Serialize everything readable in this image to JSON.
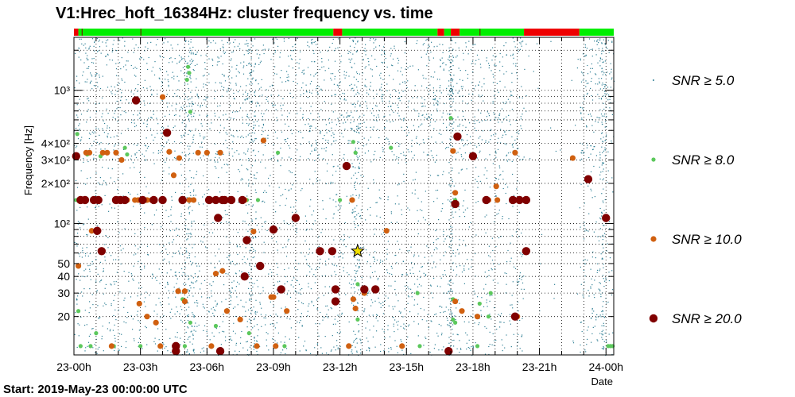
{
  "chart_data": {
    "type": "scatter",
    "title": "V1:Hrec_hoft_16384Hz: cluster frequency vs. time",
    "xlabel": "Date",
    "ylabel": "Frequency [Hz]",
    "xlim": [
      0,
      24.35
    ],
    "ylim": [
      10.3,
      2500
    ],
    "yscale": "log",
    "x_unit": "hours since start",
    "x_ticks": [
      {
        "value": 0,
        "label": "23-00h"
      },
      {
        "value": 3,
        "label": "23-03h"
      },
      {
        "value": 6,
        "label": "23-06h"
      },
      {
        "value": 9,
        "label": "23-09h"
      },
      {
        "value": 12,
        "label": "23-12h"
      },
      {
        "value": 15,
        "label": "23-15h"
      },
      {
        "value": 18,
        "label": "23-18h"
      },
      {
        "value": 21,
        "label": "23-21h"
      },
      {
        "value": 24,
        "label": "24-00h"
      }
    ],
    "y_ticks": [
      {
        "value": 20,
        "label": "20"
      },
      {
        "value": 30,
        "label": "30"
      },
      {
        "value": 40,
        "label": "40"
      },
      {
        "value": 50,
        "label": "50"
      },
      {
        "value": 100,
        "label": "10²"
      },
      {
        "value": 200,
        "label": "2×10²"
      },
      {
        "value": 300,
        "label": "3×10²"
      },
      {
        "value": 400,
        "label": "4×10²"
      },
      {
        "value": 1000,
        "label": "10³"
      }
    ],
    "grid": true,
    "legend_position": "right",
    "footer": "Start: 2019-May-23 00:00:00 UTC",
    "segment_bar": [
      {
        "start": 0.0,
        "end": 0.2,
        "state": "off"
      },
      {
        "start": 0.2,
        "end": 11.7,
        "state": "on"
      },
      {
        "start": 11.7,
        "end": 12.1,
        "state": "off"
      },
      {
        "start": 12.1,
        "end": 16.4,
        "state": "on"
      },
      {
        "start": 16.4,
        "end": 16.7,
        "state": "off"
      },
      {
        "start": 16.7,
        "end": 17.0,
        "state": "on"
      },
      {
        "start": 17.0,
        "end": 17.4,
        "state": "off"
      },
      {
        "start": 17.4,
        "end": 20.3,
        "state": "on"
      },
      {
        "start": 20.3,
        "end": 22.8,
        "state": "off"
      },
      {
        "start": 22.8,
        "end": 24.35,
        "state": "on"
      }
    ],
    "background_density": {
      "series": "SNR ≥ 5.0",
      "quiet_ranges": [
        [
          20.3,
          22.8
        ]
      ],
      "dense_ranges": [
        [
          5.0,
          5.4
        ],
        [
          7.8,
          8.2
        ],
        [
          12.5,
          12.9
        ],
        [
          16.9,
          17.1
        ],
        [
          23.7,
          24.0
        ]
      ]
    },
    "series": [
      {
        "name": "SNR ≥ 5.0",
        "threshold": 5.0,
        "color": "#2f7f95",
        "marker": "dot"
      },
      {
        "name": "SNR ≥ 8.0",
        "threshold": 8.0,
        "color": "#5cc85c",
        "marker": "circle-small",
        "points": [
          [
            0.1,
            150
          ],
          [
            0.15,
            470
          ],
          [
            0.2,
            22
          ],
          [
            0.3,
            12
          ],
          [
            0.6,
            330
          ],
          [
            0.75,
            12
          ],
          [
            1.0,
            15
          ],
          [
            1.2,
            320
          ],
          [
            1.8,
            12
          ],
          [
            2.1,
            150
          ],
          [
            2.3,
            370
          ],
          [
            2.4,
            330
          ],
          [
            3.0,
            12
          ],
          [
            4.6,
            12
          ],
          [
            4.9,
            27
          ],
          [
            5.0,
            12
          ],
          [
            5.1,
            1200
          ],
          [
            5.15,
            1500
          ],
          [
            5.2,
            1350
          ],
          [
            5.25,
            690
          ],
          [
            5.25,
            18
          ],
          [
            6.4,
            17
          ],
          [
            7.8,
            150
          ],
          [
            7.9,
            15
          ],
          [
            8.3,
            150
          ],
          [
            9.2,
            340
          ],
          [
            9.5,
            12
          ],
          [
            12.0,
            150
          ],
          [
            12.6,
            410
          ],
          [
            12.7,
            340
          ],
          [
            12.8,
            35
          ],
          [
            12.8,
            19
          ],
          [
            14.3,
            370
          ],
          [
            15.5,
            30
          ],
          [
            15.6,
            12
          ],
          [
            17.0,
            620
          ],
          [
            17.1,
            19
          ],
          [
            17.1,
            27
          ],
          [
            17.2,
            150
          ],
          [
            17.2,
            18
          ],
          [
            18.2,
            12
          ],
          [
            18.3,
            25
          ],
          [
            18.7,
            20
          ],
          [
            18.8,
            30
          ],
          [
            24.1,
            12
          ],
          [
            24.2,
            12
          ],
          [
            24.3,
            12
          ]
        ]
      },
      {
        "name": "SNR ≥ 10.0",
        "threshold": 10.0,
        "color": "#d06010",
        "marker": "circle-medium",
        "points": [
          [
            0.2,
            48
          ],
          [
            0.55,
            340
          ],
          [
            0.7,
            340
          ],
          [
            0.8,
            88
          ],
          [
            1.3,
            340
          ],
          [
            1.5,
            340
          ],
          [
            1.7,
            12
          ],
          [
            1.9,
            340
          ],
          [
            2.15,
            300
          ],
          [
            2.4,
            150
          ],
          [
            2.75,
            150
          ],
          [
            2.9,
            150
          ],
          [
            2.95,
            25
          ],
          [
            3.3,
            20
          ],
          [
            3.3,
            150
          ],
          [
            3.5,
            150
          ],
          [
            3.7,
            18
          ],
          [
            3.9,
            12
          ],
          [
            4.0,
            890
          ],
          [
            4.3,
            345
          ],
          [
            4.5,
            230
          ],
          [
            4.6,
            12
          ],
          [
            4.7,
            31
          ],
          [
            4.75,
            310
          ],
          [
            4.9,
            150
          ],
          [
            5.0,
            26
          ],
          [
            5.0,
            31
          ],
          [
            5.2,
            150
          ],
          [
            5.4,
            150
          ],
          [
            5.6,
            340
          ],
          [
            6.0,
            340
          ],
          [
            6.2,
            12
          ],
          [
            6.3,
            150
          ],
          [
            6.4,
            42
          ],
          [
            6.6,
            340
          ],
          [
            6.7,
            44
          ],
          [
            6.9,
            22
          ],
          [
            7.0,
            150
          ],
          [
            7.5,
            19
          ],
          [
            7.7,
            150
          ],
          [
            8.1,
            87
          ],
          [
            8.25,
            12
          ],
          [
            8.55,
            420
          ],
          [
            8.9,
            28
          ],
          [
            9.0,
            28
          ],
          [
            9.1,
            12
          ],
          [
            9.6,
            22
          ],
          [
            12.4,
            12
          ],
          [
            12.55,
            150
          ],
          [
            12.6,
            27
          ],
          [
            12.7,
            23
          ],
          [
            13.1,
            30
          ],
          [
            14.1,
            88
          ],
          [
            14.8,
            12
          ],
          [
            17.1,
            350
          ],
          [
            17.2,
            170
          ],
          [
            17.2,
            26
          ],
          [
            17.5,
            22
          ],
          [
            18.2,
            20
          ],
          [
            18.7,
            150
          ],
          [
            19.05,
            190
          ],
          [
            19.1,
            150
          ],
          [
            19.9,
            340
          ],
          [
            20.0,
            20
          ],
          [
            22.5,
            310
          ]
        ]
      },
      {
        "name": "SNR ≥ 20.0",
        "threshold": 20.0,
        "color": "#800000",
        "marker": "circle-large",
        "points": [
          [
            0.1,
            320
          ],
          [
            0.3,
            150
          ],
          [
            0.5,
            150
          ],
          [
            0.9,
            150
          ],
          [
            1.1,
            150
          ],
          [
            1.05,
            88
          ],
          [
            1.25,
            62
          ],
          [
            1.9,
            150
          ],
          [
            2.1,
            150
          ],
          [
            2.3,
            150
          ],
          [
            2.8,
            840
          ],
          [
            3.1,
            150
          ],
          [
            3.6,
            150
          ],
          [
            4.0,
            150
          ],
          [
            4.2,
            480
          ],
          [
            4.6,
            12
          ],
          [
            4.6,
            11
          ],
          [
            4.9,
            150
          ],
          [
            6.1,
            150
          ],
          [
            6.4,
            150
          ],
          [
            6.5,
            110
          ],
          [
            6.6,
            11
          ],
          [
            6.7,
            150
          ],
          [
            6.8,
            150
          ],
          [
            7.1,
            150
          ],
          [
            7.6,
            150
          ],
          [
            7.7,
            40
          ],
          [
            7.8,
            75
          ],
          [
            8.4,
            48
          ],
          [
            9.0,
            90
          ],
          [
            9.35,
            32
          ],
          [
            10.0,
            110
          ],
          [
            11.1,
            62
          ],
          [
            11.65,
            62
          ],
          [
            11.8,
            32
          ],
          [
            11.8,
            26
          ],
          [
            12.3,
            270
          ],
          [
            13.1,
            32
          ],
          [
            13.6,
            32
          ],
          [
            16.9,
            11
          ],
          [
            17.2,
            140
          ],
          [
            17.3,
            450
          ],
          [
            18.0,
            320
          ],
          [
            18.6,
            150
          ],
          [
            19.8,
            150
          ],
          [
            19.9,
            20
          ],
          [
            20.1,
            150
          ],
          [
            20.4,
            150
          ],
          [
            20.4,
            62
          ],
          [
            23.2,
            215
          ],
          [
            24.0,
            110
          ]
        ]
      },
      {
        "name": "Loudest event",
        "color": "#f0e000",
        "marker": "star",
        "points": [
          [
            12.8,
            62
          ]
        ]
      }
    ]
  }
}
